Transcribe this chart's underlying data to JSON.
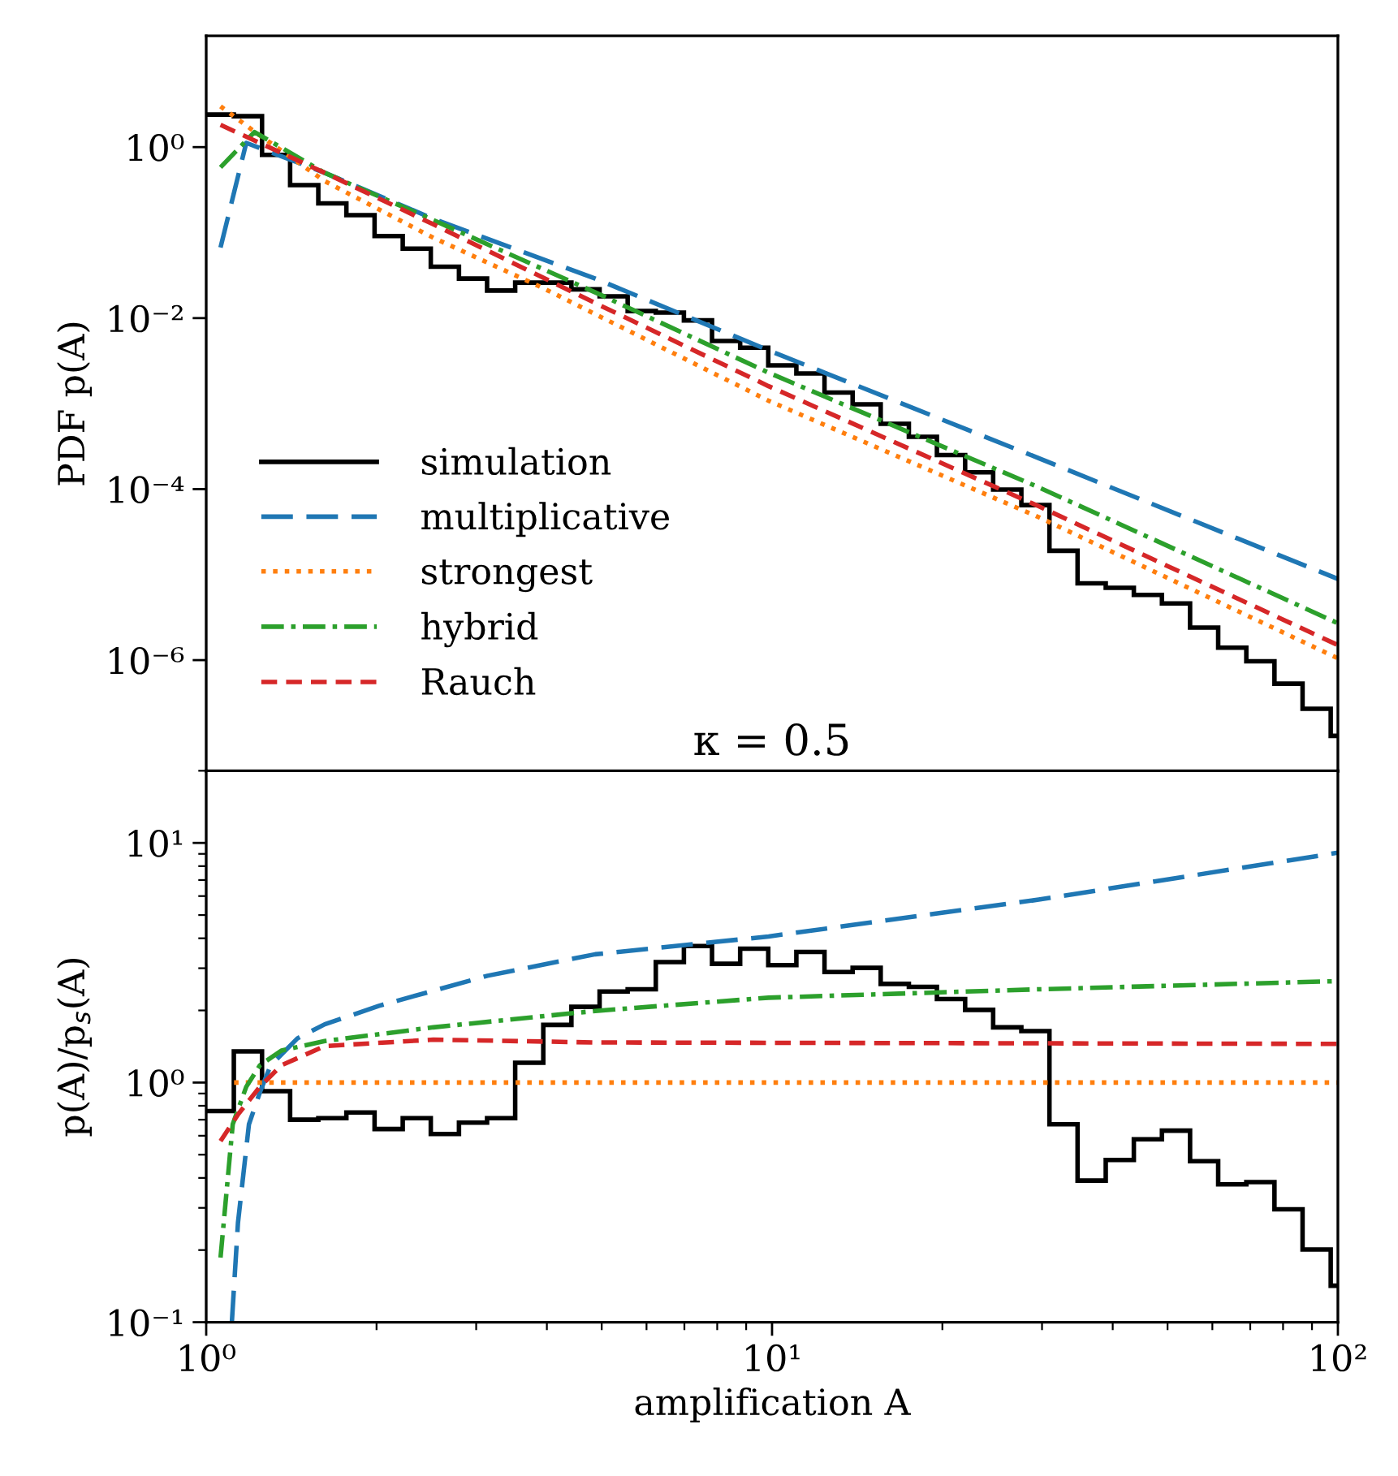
{
  "chart_data": [
    {
      "type": "line",
      "ylabel": "PDF p(A)",
      "annotations": [
        "κ = 0.5"
      ],
      "log": "xy",
      "xlim": [
        1,
        100
      ],
      "ylim": [
        5e-08,
        20
      ],
      "yticks": [
        {
          "value": 1,
          "label": "10⁰"
        },
        {
          "value": 0.01,
          "label": "10⁻²"
        },
        {
          "value": 0.0001,
          "label": "10⁻⁴"
        },
        {
          "value": 1e-06,
          "label": "10⁻⁶"
        }
      ],
      "tick_labels": "y",
      "legend": "left",
      "series": [
        {
          "name": "simulation",
          "type": "histogram",
          "color": "#000000",
          "line_style": "solid",
          "bins": [
            1,
            1.119,
            1.255,
            1.407,
            1.578,
            1.769,
            1.984,
            2.225,
            2.494,
            2.797,
            3.136,
            3.516,
            3.942,
            4.42,
            4.957,
            5.557,
            6.231,
            6.986,
            7.833,
            8.783,
            9.847,
            11.04,
            12.38,
            13.88,
            15.56,
            17.45,
            19.56,
            21.94,
            24.59,
            27.58,
            30.92,
            34.67,
            38.88,
            43.59,
            48.87,
            54.8,
            61.44,
            68.89,
            77.25,
            86.61,
            97.12,
            100
          ],
          "values": [
            2.4,
            2.3,
            0.81,
            0.36,
            0.22,
            0.16,
            0.091,
            0.065,
            0.04,
            0.029,
            0.021,
            0.026,
            0.026,
            0.0217,
            0.018,
            0.0121,
            0.0116,
            0.0094,
            0.0054,
            0.0045,
            0.0028,
            0.00225,
            0.00135,
            0.00098,
            0.00058,
            0.00041,
            0.00025,
            0.000157,
            9.9e-05,
            6.5e-05,
            1.9e-05,
            7.9e-06,
            7e-06,
            5.8e-06,
            4.6e-06,
            2.4e-06,
            1.4e-06,
            9.7e-07,
            5.3e-07,
            2.7e-07,
            1.3e-07
          ]
        },
        {
          "name": "multiplicative",
          "color": "#1f77b4",
          "line_style": "longdashed",
          "x": [
            1.06,
            1.177,
            1.62,
            2.52,
            4.87,
            9.86,
            29.6,
            100
          ],
          "values": [
            0.067,
            1.12,
            0.5,
            0.145,
            0.029,
            0.0042,
            0.00023,
            8.9e-06
          ]
        },
        {
          "name": "strongest",
          "color": "#ff7f0e",
          "line_style": "dotted",
          "x": [
            1.06,
            1.22,
            1.62,
            2.52,
            3.91,
            9.86,
            29.6,
            100
          ],
          "values": [
            3.0,
            1.5,
            0.4,
            0.087,
            0.023,
            0.00108,
            4.7e-05,
            1.05e-06
          ]
        },
        {
          "name": "hybrid",
          "color": "#2ca02c",
          "line_style": "dashdot",
          "x": [
            1.06,
            1.217,
            1.62,
            2.52,
            4.87,
            9.86,
            29.6,
            100
          ],
          "values": [
            0.58,
            1.5,
            0.5,
            0.14,
            0.02,
            0.0023,
            0.000105,
            2.7e-06
          ]
        },
        {
          "name": "Rauch",
          "color": "#d62728",
          "line_style": "dashed",
          "x": [
            1.06,
            1.62,
            2.52,
            4.87,
            9.86,
            29.6,
            100
          ],
          "values": [
            1.82,
            0.5,
            0.125,
            0.015,
            0.0016,
            6.3e-05,
            1.5e-06
          ]
        }
      ]
    },
    {
      "type": "line",
      "xlabel": "amplification A",
      "ylabel": "p(A)/p$_{s}$(A)",
      "log": "xy",
      "xlim": [
        1,
        100
      ],
      "ylim": [
        0.1,
        20
      ],
      "xticks": [
        {
          "value": 1,
          "label": "10⁰"
        },
        {
          "value": 10,
          "label": "10¹"
        },
        {
          "value": 100,
          "label": "10²"
        }
      ],
      "yticks": [
        {
          "value": 0.1,
          "label": "10⁻¹"
        },
        {
          "value": 1,
          "label": "10⁰"
        },
        {
          "value": 10,
          "label": "10¹"
        }
      ],
      "series": [
        {
          "type": "histogram",
          "color": "#000000",
          "line_style": "solid",
          "bins": [
            1,
            1.119,
            1.255,
            1.407,
            1.578,
            1.769,
            1.984,
            2.225,
            2.494,
            2.797,
            3.136,
            3.516,
            3.942,
            4.42,
            4.957,
            5.557,
            6.231,
            6.986,
            7.833,
            8.783,
            9.847,
            11.04,
            12.38,
            13.88,
            15.56,
            17.45,
            19.56,
            21.94,
            24.59,
            27.58,
            30.92,
            34.67,
            38.88,
            43.59,
            48.87,
            54.8,
            61.44,
            68.89,
            77.25,
            86.61,
            97.12,
            100
          ],
          "values": [
            0.76,
            1.35,
            0.92,
            0.7,
            0.71,
            0.75,
            0.64,
            0.71,
            0.61,
            0.68,
            0.71,
            1.21,
            1.74,
            2.07,
            2.4,
            2.45,
            3.18,
            3.71,
            3.13,
            3.62,
            3.09,
            3.51,
            2.89,
            3.01,
            2.58,
            2.51,
            2.23,
            2.01,
            1.7,
            1.64,
            0.67,
            0.39,
            0.475,
            0.58,
            0.63,
            0.47,
            0.376,
            0.384,
            0.296,
            0.201,
            0.142
          ]
        },
        {
          "color": "#1f77b4",
          "line_style": "longdashed",
          "x": [
            1.11,
            1.138,
            1.19,
            1.244,
            1.3,
            1.45,
            1.62,
            2.02,
            3.14,
            4.87,
            9.86,
            29.6,
            100
          ],
          "values": [
            0.1,
            0.26,
            0.67,
            0.91,
            1.18,
            1.53,
            1.75,
            2.09,
            2.79,
            3.43,
            4.07,
            5.8,
            9.1
          ]
        },
        {
          "color": "#ff7f0e",
          "line_style": "dotted",
          "x": [
            1.12,
            100
          ],
          "values": [
            1,
            1
          ]
        },
        {
          "color": "#2ca02c",
          "line_style": "dashdot",
          "x": [
            1.06,
            1.114,
            1.177,
            1.244,
            1.358,
            1.62,
            2.52,
            4.87,
            9.86,
            29.6,
            100
          ],
          "values": [
            0.186,
            0.67,
            0.96,
            1.18,
            1.36,
            1.49,
            1.7,
            1.99,
            2.26,
            2.45,
            2.65
          ]
        },
        {
          "color": "#d62728",
          "line_style": "dashed",
          "x": [
            1.06,
            1.14,
            1.244,
            1.358,
            1.62,
            2.52,
            4.87,
            100
          ],
          "values": [
            0.57,
            0.74,
            0.96,
            1.18,
            1.42,
            1.51,
            1.47,
            1.45
          ]
        }
      ]
    }
  ]
}
